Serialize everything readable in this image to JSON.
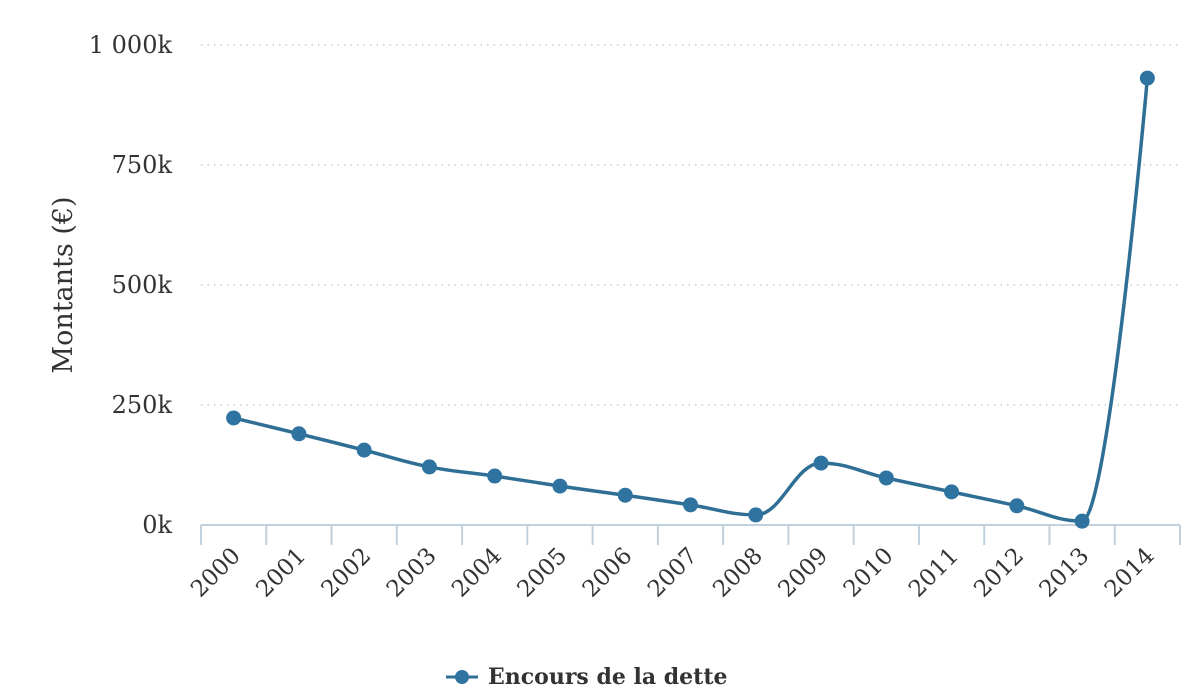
{
  "chart_data": {
    "type": "line",
    "title": "",
    "xlabel": "",
    "ylabel": "Montants (€)",
    "ylim": [
      0,
      1000000
    ],
    "yticks": [
      0,
      250000,
      500000,
      750000,
      1000000
    ],
    "ytick_labels": [
      "0k",
      "250k",
      "500k",
      "750k",
      "1 000k"
    ],
    "grid": "horizontal dotted",
    "legend_position": "bottom-center",
    "categories": [
      "2000",
      "2001",
      "2002",
      "2003",
      "2004",
      "2005",
      "2006",
      "2007",
      "2008",
      "2009",
      "2010",
      "2011",
      "2012",
      "2013",
      "2014"
    ],
    "series": [
      {
        "name": "Encours de la dette",
        "color": "#2f6f96",
        "values": [
          223000,
          190000,
          156000,
          121000,
          102000,
          81000,
          62000,
          42000,
          21000,
          129000,
          98000,
          69000,
          40000,
          8000,
          931000
        ]
      }
    ]
  }
}
